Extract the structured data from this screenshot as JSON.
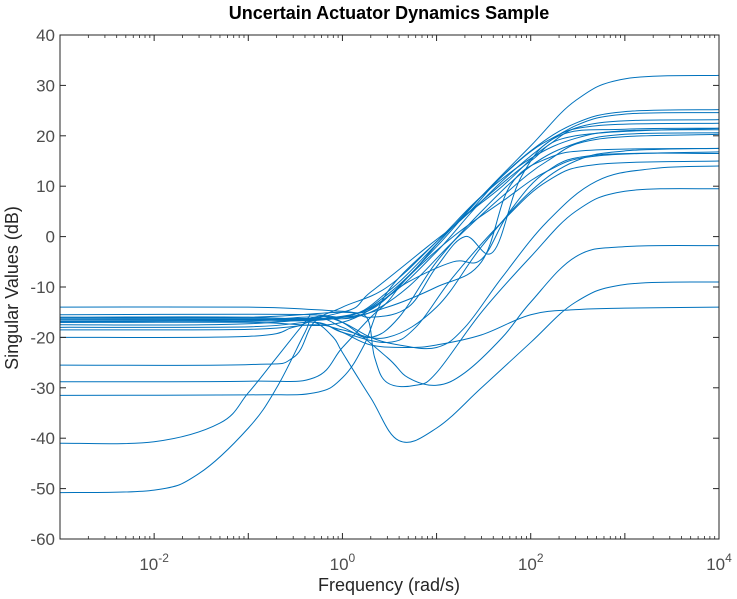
{
  "chart_data": {
    "type": "line",
    "title": "Uncertain Actuator Dynamics Sample",
    "xlabel": "Frequency (rad/s)",
    "ylabel": "Singular Values (dB)",
    "xscale": "log",
    "xlim": [
      0.001,
      10000
    ],
    "ylim": [
      -60,
      40
    ],
    "grid": false,
    "line_color": "#0072BD",
    "x_ticks": [
      {
        "base": "10",
        "exp": "-2",
        "value": 0.01
      },
      {
        "base": "10",
        "exp": "0",
        "value": 1
      },
      {
        "base": "10",
        "exp": "2",
        "value": 100
      },
      {
        "base": "10",
        "exp": "4",
        "value": 10000
      }
    ],
    "y_ticks": [
      "40",
      "30",
      "20",
      "10",
      "0",
      "-10",
      "-20",
      "-30",
      "-40",
      "-50",
      "-60"
    ],
    "y_tick_values": [
      40,
      30,
      20,
      10,
      0,
      -10,
      -20,
      -30,
      -40,
      -50,
      -60
    ],
    "series": [
      {
        "points": [
          [
            0.001,
            -16.2
          ],
          [
            0.1,
            -16.2
          ],
          [
            1,
            -15.8
          ],
          [
            3,
            -12
          ],
          [
            10,
            -3
          ],
          [
            30,
            7
          ],
          [
            100,
            16
          ],
          [
            300,
            22
          ],
          [
            1000,
            24.3
          ],
          [
            10000,
            24.6
          ]
        ]
      },
      {
        "points": [
          [
            0.001,
            -16.5
          ],
          [
            0.1,
            -16.4
          ],
          [
            1,
            -16
          ],
          [
            3,
            -11
          ],
          [
            10,
            -1.5
          ],
          [
            30,
            8
          ],
          [
            100,
            17
          ],
          [
            300,
            22.5
          ],
          [
            1000,
            24.8
          ],
          [
            10000,
            25.2
          ]
        ]
      },
      {
        "points": [
          [
            0.001,
            -17
          ],
          [
            0.1,
            -16.8
          ],
          [
            1,
            -16
          ],
          [
            3,
            -11.5
          ],
          [
            10,
            -2
          ],
          [
            30,
            8
          ],
          [
            100,
            18
          ],
          [
            300,
            27
          ],
          [
            1000,
            31.3
          ],
          [
            10000,
            32
          ]
        ]
      },
      {
        "points": [
          [
            0.001,
            -16.8
          ],
          [
            0.1,
            -16.6
          ],
          [
            0.5,
            -16
          ],
          [
            1,
            -18
          ],
          [
            2,
            -20
          ],
          [
            4,
            -16
          ],
          [
            10,
            -5
          ],
          [
            30,
            5
          ],
          [
            100,
            14
          ],
          [
            300,
            18.5
          ],
          [
            1000,
            20.3
          ],
          [
            10000,
            20.6
          ]
        ]
      },
      {
        "points": [
          [
            0.001,
            -18
          ],
          [
            0.1,
            -17.9
          ],
          [
            0.5,
            -17
          ],
          [
            1,
            -19
          ],
          [
            3,
            -21
          ],
          [
            6,
            -18
          ],
          [
            15,
            -8
          ],
          [
            50,
            3
          ],
          [
            150,
            11
          ],
          [
            500,
            14.3
          ],
          [
            10000,
            15
          ]
        ]
      },
      {
        "points": [
          [
            0.001,
            -18.5
          ],
          [
            0.1,
            -18.4
          ],
          [
            0.5,
            -17.5
          ],
          [
            1,
            -18.5
          ],
          [
            3,
            -20
          ],
          [
            10,
            -14
          ],
          [
            30,
            -2
          ],
          [
            100,
            9
          ],
          [
            300,
            15
          ],
          [
            1000,
            17
          ],
          [
            10000,
            17.5
          ]
        ]
      },
      {
        "points": [
          [
            0.001,
            -14
          ],
          [
            0.1,
            -14
          ],
          [
            0.5,
            -14.5
          ],
          [
            1,
            -14.8
          ],
          [
            2,
            -14.5
          ],
          [
            5,
            -8
          ],
          [
            15,
            2
          ],
          [
            50,
            10
          ],
          [
            150,
            18
          ],
          [
            500,
            22.5
          ],
          [
            10000,
            23.2
          ]
        ]
      },
      {
        "points": [
          [
            0.001,
            -15.5
          ],
          [
            0.1,
            -15.4
          ],
          [
            0.5,
            -15.5
          ],
          [
            1,
            -16
          ],
          [
            2,
            -15
          ],
          [
            5,
            -10
          ],
          [
            15,
            -1
          ],
          [
            50,
            8
          ],
          [
            150,
            15
          ],
          [
            500,
            19.3
          ],
          [
            10000,
            20.3
          ]
        ]
      },
      {
        "points": [
          [
            0.001,
            -25.5
          ],
          [
            0.1,
            -25.4
          ],
          [
            0.3,
            -24
          ],
          [
            0.5,
            -17
          ],
          [
            1,
            -14
          ],
          [
            3,
            -10
          ],
          [
            10,
            -1
          ],
          [
            30,
            8
          ],
          [
            100,
            15.5
          ],
          [
            300,
            19.5
          ],
          [
            1000,
            21
          ],
          [
            10000,
            21.2
          ]
        ]
      },
      {
        "points": [
          [
            0.001,
            -28.8
          ],
          [
            0.1,
            -28.7
          ],
          [
            0.5,
            -28
          ],
          [
            1,
            -22
          ],
          [
            2,
            -16
          ],
          [
            3,
            -13
          ],
          [
            5,
            -8
          ],
          [
            15,
            0
          ],
          [
            50,
            7
          ],
          [
            150,
            13
          ],
          [
            500,
            16
          ],
          [
            10000,
            16.8
          ]
        ]
      },
      {
        "points": [
          [
            0.001,
            -31.5
          ],
          [
            0.1,
            -31.4
          ],
          [
            0.5,
            -31
          ],
          [
            1,
            -28
          ],
          [
            1.7,
            -21.5
          ],
          [
            3,
            -11
          ],
          [
            10,
            -1
          ],
          [
            30,
            7
          ],
          [
            100,
            15
          ],
          [
            300,
            20
          ],
          [
            10000,
            21.5
          ]
        ]
      },
      {
        "points": [
          [
            0.001,
            -41
          ],
          [
            0.01,
            -40.7
          ],
          [
            0.05,
            -37
          ],
          [
            0.1,
            -31
          ],
          [
            0.2,
            -24
          ],
          [
            0.4,
            -17
          ],
          [
            0.5,
            -15.5
          ],
          [
            1,
            -17
          ],
          [
            2,
            -20
          ],
          [
            4,
            -21.5
          ],
          [
            10,
            -22
          ],
          [
            20,
            -18
          ],
          [
            50,
            -8
          ],
          [
            150,
            3
          ],
          [
            500,
            11
          ],
          [
            2000,
            13.5
          ],
          [
            10000,
            14
          ]
        ]
      },
      {
        "points": [
          [
            0.001,
            -50.8
          ],
          [
            0.01,
            -50.3
          ],
          [
            0.03,
            -47
          ],
          [
            0.1,
            -38
          ],
          [
            0.2,
            -30
          ],
          [
            0.4,
            -19
          ],
          [
            0.5,
            -16
          ],
          [
            1,
            -17
          ],
          [
            3,
            -24
          ],
          [
            5,
            -28
          ],
          [
            10,
            -29.5
          ],
          [
            20,
            -27
          ],
          [
            50,
            -20
          ],
          [
            100,
            -13
          ],
          [
            300,
            -4
          ],
          [
            1000,
            -2
          ],
          [
            10000,
            -1.8
          ]
        ]
      },
      {
        "points": [
          [
            0.001,
            -20
          ],
          [
            0.1,
            -19.8
          ],
          [
            0.3,
            -18
          ],
          [
            0.5,
            -17
          ],
          [
            0.8,
            -20
          ],
          [
            1,
            -23
          ],
          [
            2,
            -32
          ],
          [
            4,
            -40.5
          ],
          [
            10,
            -38
          ],
          [
            30,
            -30
          ],
          [
            100,
            -21
          ],
          [
            300,
            -13
          ],
          [
            1000,
            -9.5
          ],
          [
            10000,
            -9
          ]
        ]
      },
      {
        "points": [
          [
            0.001,
            -16
          ],
          [
            0.1,
            -16
          ],
          [
            0.5,
            -17
          ],
          [
            1,
            -19
          ],
          [
            2,
            -21.5
          ],
          [
            5,
            -22
          ],
          [
            10,
            -21.5
          ],
          [
            30,
            -19.5
          ],
          [
            100,
            -15.5
          ],
          [
            300,
            -14.5
          ],
          [
            1000,
            -14.2
          ],
          [
            10000,
            -14
          ]
        ]
      },
      {
        "points": [
          [
            0.001,
            -16.5
          ],
          [
            0.1,
            -16.5
          ],
          [
            1,
            -16.3
          ],
          [
            1.8,
            -16
          ],
          [
            2.2,
            -24
          ],
          [
            3,
            -29
          ],
          [
            6,
            -29.5
          ],
          [
            10,
            -27
          ],
          [
            30,
            -15
          ],
          [
            100,
            -4
          ],
          [
            300,
            5
          ],
          [
            1000,
            9
          ],
          [
            10000,
            9.5
          ]
        ]
      },
      {
        "points": [
          [
            0.001,
            -17
          ],
          [
            0.1,
            -16.8
          ],
          [
            1,
            -16
          ],
          [
            3,
            -14
          ],
          [
            10,
            -10
          ],
          [
            30,
            -5
          ],
          [
            60,
            10
          ],
          [
            150,
            15.5
          ],
          [
            500,
            17.2
          ],
          [
            10000,
            17.5
          ]
        ]
      },
      {
        "points": [
          [
            0.001,
            -17.5
          ],
          [
            0.1,
            -17.3
          ],
          [
            1,
            -15
          ],
          [
            2,
            -11
          ],
          [
            8,
            -2
          ],
          [
            20,
            4
          ],
          [
            50,
            12
          ],
          [
            150,
            19
          ],
          [
            500,
            22
          ],
          [
            10000,
            22.5
          ]
        ]
      },
      {
        "points": [
          [
            0.001,
            -16
          ],
          [
            0.1,
            -16
          ],
          [
            1,
            -15
          ],
          [
            2,
            -16
          ],
          [
            5,
            -14
          ],
          [
            10,
            -6
          ],
          [
            20,
            0
          ],
          [
            40,
            -3
          ],
          [
            80,
            12
          ],
          [
            200,
            20
          ],
          [
            1000,
            21.3
          ],
          [
            10000,
            21.5
          ]
        ]
      },
      {
        "points": [
          [
            0.001,
            -17
          ],
          [
            0.1,
            -17
          ],
          [
            1,
            -17
          ],
          [
            5,
            -9
          ],
          [
            15,
            -5
          ],
          [
            30,
            -4.5
          ],
          [
            60,
            5
          ],
          [
            150,
            13
          ],
          [
            500,
            16.2
          ],
          [
            10000,
            16.5
          ]
        ]
      }
    ]
  }
}
